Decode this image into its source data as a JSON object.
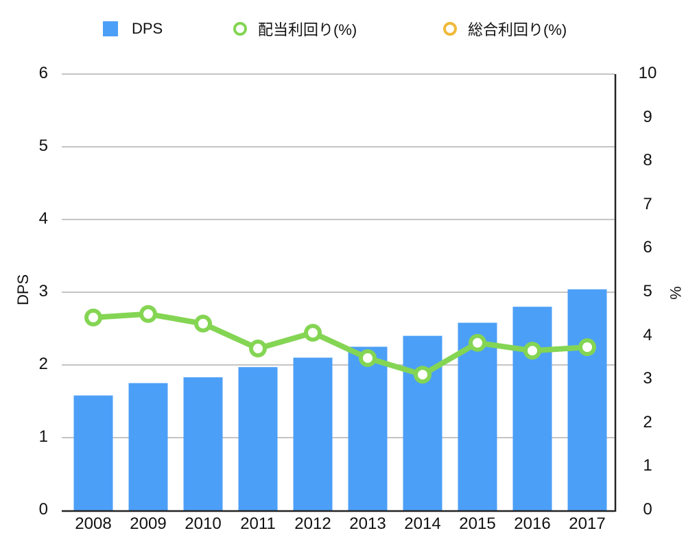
{
  "chart_data": {
    "type": "bar+line",
    "title": "",
    "categories": [
      "2008",
      "2009",
      "2010",
      "2011",
      "2012",
      "2013",
      "2014",
      "2015",
      "2016",
      "2017"
    ],
    "series": [
      {
        "name": "DPS",
        "type": "bar",
        "axis": "left",
        "color": "#4c9ff7",
        "values": [
          1.58,
          1.75,
          1.83,
          1.97,
          2.1,
          2.25,
          2.4,
          2.58,
          2.8,
          3.04
        ]
      },
      {
        "name": "配当利回り(%)",
        "type": "line",
        "axis": "right",
        "color": "#84d553",
        "values": [
          4.42,
          4.5,
          4.28,
          3.71,
          4.07,
          3.49,
          3.11,
          3.84,
          3.66,
          3.74
        ]
      },
      {
        "name": "総合利回り(%)",
        "type": "line",
        "axis": "right",
        "color": "#f0b93a",
        "values": []
      }
    ],
    "xlabel": "",
    "ylabel": "DPS",
    "ylabel_right": "%",
    "ylim": [
      0,
      6
    ],
    "ylim_right": [
      0,
      10
    ],
    "yticks": [
      "0",
      "1",
      "2",
      "3",
      "4",
      "5",
      "6"
    ],
    "yticks_right": [
      "0",
      "1",
      "2",
      "3",
      "4",
      "5",
      "6",
      "7",
      "8",
      "9",
      "10"
    ],
    "grid": true,
    "legend_position": "top"
  },
  "legend": {
    "items": [
      {
        "label": "DPS",
        "color": "#4c9ff7"
      },
      {
        "label": "配当利回り(%)",
        "color": "#84d553"
      },
      {
        "label": "総合利回り(%)",
        "color": "#f0b93a"
      }
    ]
  },
  "axes": {
    "left_label": "DPS",
    "right_label": "%"
  }
}
